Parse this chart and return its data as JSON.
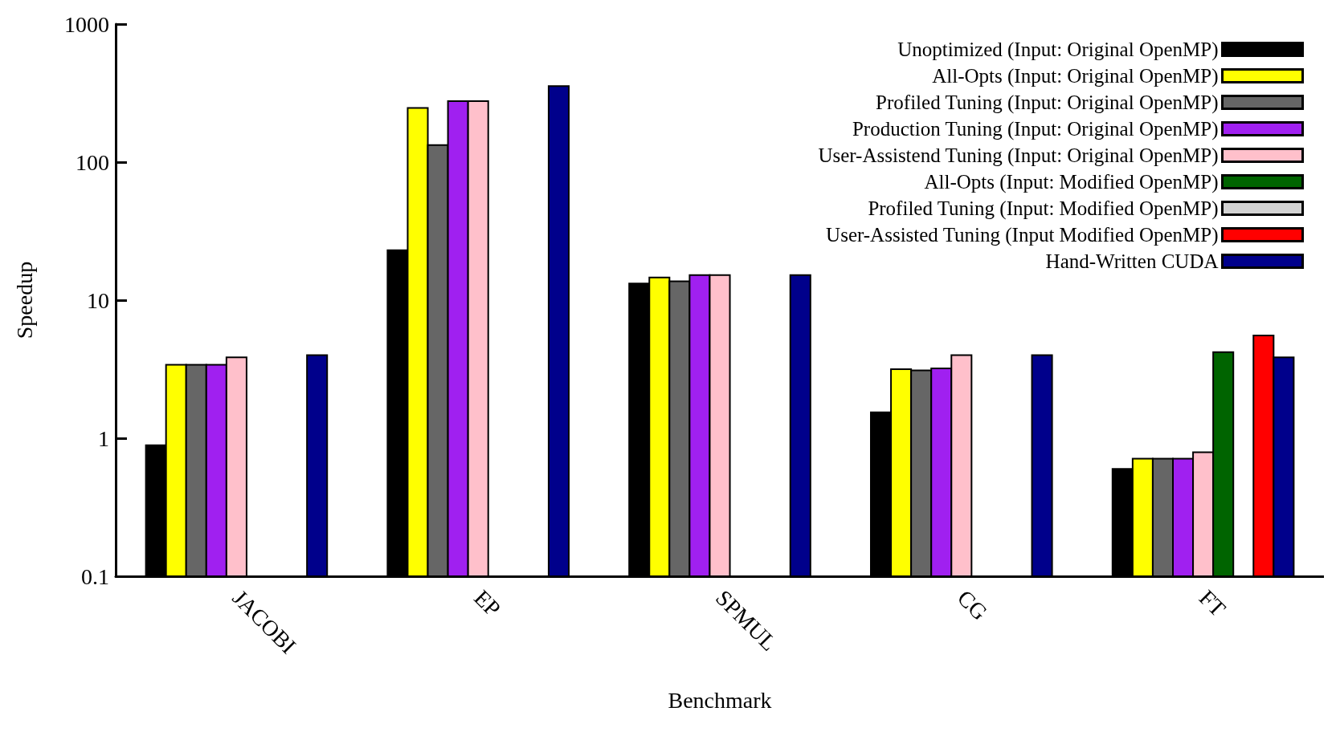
{
  "chart_data": {
    "type": "bar",
    "xlabel": "Benchmark",
    "ylabel": "Speedup",
    "categories": [
      "JACOBI",
      "EP",
      "SPMUL",
      "CG",
      "FT"
    ],
    "series": [
      {
        "name": "Unoptimized (Input: Original OpenMP)",
        "color": "#000000",
        "values": [
          0.89,
          23,
          13.2,
          1.54,
          0.6
        ]
      },
      {
        "name": "All-Opts (Input: Original OpenMP)",
        "color": "#ffff00",
        "values": [
          3.4,
          247,
          14.6,
          3.16,
          0.71
        ]
      },
      {
        "name": "Profiled Tuning (Input: Original OpenMP)",
        "color": "#666666",
        "values": [
          3.4,
          133,
          13.7,
          3.1,
          0.71
        ]
      },
      {
        "name": "Production Tuning (Input: Original OpenMP)",
        "color": "#a020f0",
        "values": [
          3.4,
          277,
          15.2,
          3.2,
          0.71
        ]
      },
      {
        "name": "User-Assistend Tuning (Input: Original OpenMP)",
        "color": "#ffc0cb",
        "values": [
          3.85,
          277,
          15.2,
          4.0,
          0.79
        ]
      },
      {
        "name": "All-Opts (Input: Modified OpenMP)",
        "color": "#006400",
        "values": [
          null,
          null,
          null,
          null,
          4.2
        ]
      },
      {
        "name": "Profiled Tuning (Input: Modified OpenMP)",
        "color": "#d3d3d3",
        "values": [
          null,
          null,
          null,
          null,
          null
        ]
      },
      {
        "name": "User-Assisted Tuning (Input Modified OpenMP)",
        "color": "#ff0000",
        "values": [
          null,
          null,
          null,
          null,
          5.55
        ]
      },
      {
        "name": "Hand-Written CUDA",
        "color": "#00008b",
        "values": [
          4.0,
          356,
          15.2,
          4.0,
          3.85
        ]
      }
    ],
    "log": "y",
    "ylim": [
      0.1,
      1000
    ],
    "yticks": [
      0.1,
      1,
      10,
      100,
      1000
    ],
    "grid": false,
    "legend": "top right"
  }
}
